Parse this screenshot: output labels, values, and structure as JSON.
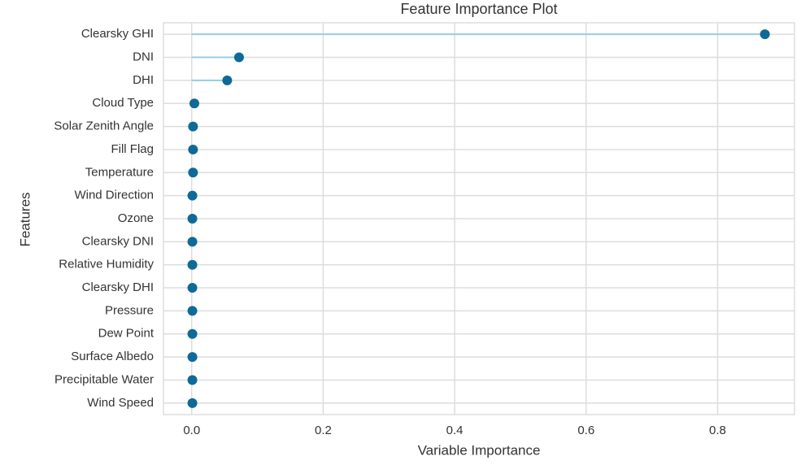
{
  "chart_data": {
    "type": "lollipop",
    "title": "Feature Importance Plot",
    "x_label": "Variable Importance",
    "y_label": "Features",
    "categories": [
      "Clearsky GHI",
      "DNI",
      "DHI",
      "Cloud Type",
      "Solar Zenith Angle",
      "Fill Flag",
      "Temperature",
      "Wind Direction",
      "Ozone",
      "Clearsky DNI",
      "Relative Humidity",
      "Clearsky DHI",
      "Pressure",
      "Dew Point",
      "Surface Albedo",
      "Precipitable Water",
      "Wind Speed"
    ],
    "values": [
      0.872,
      0.072,
      0.054,
      0.004,
      0.002,
      0.002,
      0.002,
      0.001,
      0.001,
      0.001,
      0.001,
      0.001,
      0.001,
      0.001,
      0.001,
      0.001,
      0.001
    ],
    "color": "#0e6a96",
    "stem_color": "#93cde6",
    "xlim": [
      -0.043,
      0.917
    ],
    "xticks": [
      {
        "value": 0,
        "label": "0.0"
      },
      0.2,
      0.4,
      0.6,
      0.8
    ],
    "grid": true
  }
}
